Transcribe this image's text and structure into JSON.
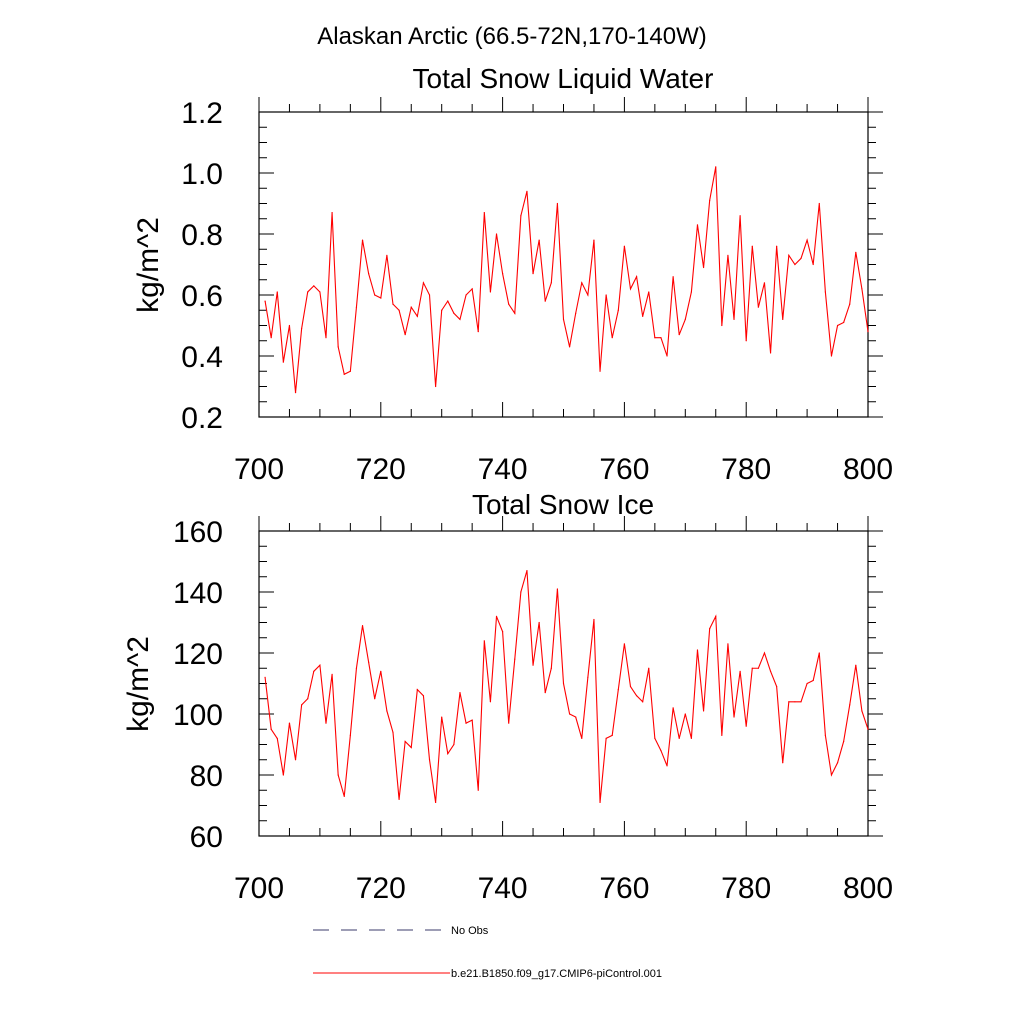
{
  "figure": {
    "title": "Alaskan Arctic (66.5-72N,170-140W)"
  },
  "legend": {
    "no_obs_label": "No Obs",
    "model_label": "b.e21.B1850.f09_g17.CMIP6-piControl.001",
    "no_obs_color": "#3b3b6b",
    "model_color": "#ff0000"
  },
  "chart_data": [
    {
      "type": "line",
      "title": "Total Snow Liquid Water",
      "xlabel": "",
      "ylabel": "kg/m^2",
      "xlim": [
        700,
        800
      ],
      "ylim": [
        0.2,
        1.2
      ],
      "xticks": [
        700,
        720,
        740,
        760,
        780,
        800
      ],
      "yticks": [
        0.2,
        0.4,
        0.6,
        0.8,
        1.0,
        1.2
      ],
      "ytick_labels": [
        "0.2",
        "0.4",
        "0.6",
        "0.8",
        "1.0",
        "1.2"
      ],
      "series": [
        {
          "name": "b.e21.B1850.f09_g17.CMIP6-piControl.001",
          "color": "#ff0000",
          "x_start": 701,
          "x_step": 1,
          "values": [
            0.58,
            0.46,
            0.61,
            0.38,
            0.5,
            0.28,
            0.49,
            0.61,
            0.63,
            0.61,
            0.46,
            0.87,
            0.43,
            0.34,
            0.35,
            0.56,
            0.78,
            0.67,
            0.6,
            0.59,
            0.73,
            0.57,
            0.55,
            0.47,
            0.56,
            0.53,
            0.64,
            0.6,
            0.3,
            0.55,
            0.58,
            0.54,
            0.52,
            0.6,
            0.62,
            0.48,
            0.87,
            0.61,
            0.8,
            0.67,
            0.57,
            0.54,
            0.86,
            0.94,
            0.67,
            0.78,
            0.58,
            0.64,
            0.9,
            0.52,
            0.43,
            0.54,
            0.64,
            0.6,
            0.78,
            0.35,
            0.6,
            0.46,
            0.55,
            0.76,
            0.62,
            0.66,
            0.53,
            0.61,
            0.46,
            0.46,
            0.4,
            0.66,
            0.47,
            0.52,
            0.61,
            0.83,
            0.69,
            0.91,
            1.02,
            0.5,
            0.73,
            0.52,
            0.86,
            0.45,
            0.76,
            0.56,
            0.64,
            0.41,
            0.76,
            0.52,
            0.73,
            0.7,
            0.72,
            0.78,
            0.7,
            0.9,
            0.61,
            0.4,
            0.5,
            0.51,
            0.57,
            0.74,
            0.62,
            0.48
          ]
        }
      ]
    },
    {
      "type": "line",
      "title": "Total Snow Ice",
      "xlabel": "",
      "ylabel": "kg/m^2",
      "xlim": [
        700,
        800
      ],
      "ylim": [
        60,
        160
      ],
      "xticks": [
        700,
        720,
        740,
        760,
        780,
        800
      ],
      "yticks": [
        60,
        80,
        100,
        120,
        140,
        160
      ],
      "ytick_labels": [
        "60",
        "80",
        "100",
        "120",
        "140",
        "160"
      ],
      "series": [
        {
          "name": "b.e21.B1850.f09_g17.CMIP6-piControl.001",
          "color": "#ff0000",
          "x_start": 701,
          "x_step": 1,
          "values": [
            112,
            95,
            92,
            80,
            97,
            85,
            103,
            105,
            114,
            116,
            97,
            113,
            80,
            73,
            93,
            115,
            129,
            117,
            105,
            114,
            101,
            94,
            72,
            91,
            89,
            108,
            106,
            85,
            71,
            99,
            87,
            90,
            107,
            97,
            98,
            75,
            124,
            104,
            132,
            127,
            97,
            118,
            140,
            147,
            116,
            130,
            107,
            115,
            141,
            110,
            100,
            99,
            92,
            112,
            131,
            71,
            92,
            93,
            108,
            123,
            109,
            106,
            104,
            115,
            92,
            88,
            83,
            102,
            92,
            100,
            92,
            121,
            101,
            128,
            132,
            93,
            123,
            99,
            114,
            96,
            115,
            115,
            120,
            114,
            109,
            84,
            104,
            104,
            104,
            110,
            111,
            120,
            93,
            80,
            84,
            91,
            103,
            116,
            101,
            95
          ]
        }
      ]
    }
  ]
}
